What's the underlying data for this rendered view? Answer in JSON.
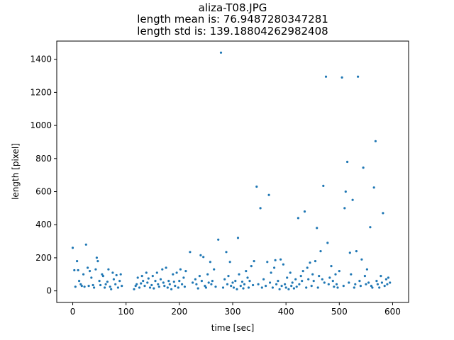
{
  "chart_data": {
    "type": "scatter",
    "title_lines": [
      "aliza-T08.JPG",
      "length mean is: 76.9487280347281",
      "length std is: 139.18804262982408"
    ],
    "xlabel": "time [sec]",
    "ylabel": "length [pixel]",
    "xlim": [
      -30,
      630
    ],
    "ylim": [
      -70,
      1510
    ],
    "xticks": [
      0,
      100,
      200,
      300,
      400,
      500,
      600
    ],
    "yticks": [
      0,
      200,
      400,
      600,
      800,
      1000,
      1200,
      1400
    ],
    "grid": false,
    "marker_color": "#1f77b4",
    "points": [
      [
        0,
        260
      ],
      [
        3,
        125
      ],
      [
        5,
        25
      ],
      [
        8,
        180
      ],
      [
        10,
        125
      ],
      [
        12,
        60
      ],
      [
        15,
        40
      ],
      [
        17,
        30
      ],
      [
        20,
        100
      ],
      [
        22,
        25
      ],
      [
        25,
        280
      ],
      [
        28,
        140
      ],
      [
        30,
        30
      ],
      [
        32,
        120
      ],
      [
        35,
        80
      ],
      [
        38,
        35
      ],
      [
        40,
        20
      ],
      [
        43,
        130
      ],
      [
        45,
        200
      ],
      [
        47,
        180
      ],
      [
        50,
        60
      ],
      [
        52,
        35
      ],
      [
        55,
        100
      ],
      [
        57,
        90
      ],
      [
        60,
        20
      ],
      [
        62,
        40
      ],
      [
        65,
        55
      ],
      [
        67,
        130
      ],
      [
        70,
        25
      ],
      [
        72,
        10
      ],
      [
        75,
        110
      ],
      [
        77,
        70
      ],
      [
        80,
        40
      ],
      [
        82,
        95
      ],
      [
        85,
        20
      ],
      [
        88,
        60
      ],
      [
        90,
        100
      ],
      [
        92,
        30
      ],
      [
        115,
        10
      ],
      [
        118,
        30
      ],
      [
        120,
        40
      ],
      [
        122,
        80
      ],
      [
        125,
        20
      ],
      [
        128,
        45
      ],
      [
        130,
        90
      ],
      [
        132,
        60
      ],
      [
        135,
        30
      ],
      [
        138,
        110
      ],
      [
        140,
        50
      ],
      [
        142,
        75
      ],
      [
        145,
        20
      ],
      [
        148,
        35
      ],
      [
        150,
        90
      ],
      [
        152,
        15
      ],
      [
        155,
        60
      ],
      [
        158,
        110
      ],
      [
        160,
        40
      ],
      [
        162,
        25
      ],
      [
        165,
        70
      ],
      [
        168,
        130
      ],
      [
        170,
        50
      ],
      [
        172,
        30
      ],
      [
        175,
        140
      ],
      [
        178,
        20
      ],
      [
        180,
        60
      ],
      [
        182,
        40
      ],
      [
        185,
        10
      ],
      [
        188,
        100
      ],
      [
        190,
        55
      ],
      [
        192,
        30
      ],
      [
        195,
        110
      ],
      [
        198,
        20
      ],
      [
        200,
        60
      ],
      [
        202,
        130
      ],
      [
        205,
        40
      ],
      [
        208,
        80
      ],
      [
        210,
        25
      ],
      [
        212,
        120
      ],
      [
        220,
        235
      ],
      [
        225,
        50
      ],
      [
        230,
        70
      ],
      [
        232,
        40
      ],
      [
        235,
        15
      ],
      [
        238,
        90
      ],
      [
        240,
        215
      ],
      [
        242,
        60
      ],
      [
        245,
        205
      ],
      [
        248,
        30
      ],
      [
        250,
        20
      ],
      [
        253,
        100
      ],
      [
        255,
        50
      ],
      [
        258,
        175
      ],
      [
        260,
        40
      ],
      [
        262,
        60
      ],
      [
        265,
        130
      ],
      [
        268,
        25
      ],
      [
        273,
        310
      ],
      [
        278,
        1440
      ],
      [
        282,
        20
      ],
      [
        285,
        70
      ],
      [
        288,
        235
      ],
      [
        290,
        40
      ],
      [
        292,
        90
      ],
      [
        295,
        175
      ],
      [
        297,
        30
      ],
      [
        300,
        50
      ],
      [
        302,
        20
      ],
      [
        305,
        60
      ],
      [
        308,
        10
      ],
      [
        310,
        320
      ],
      [
        312,
        100
      ],
      [
        315,
        30
      ],
      [
        318,
        55
      ],
      [
        320,
        15
      ],
      [
        322,
        40
      ],
      [
        325,
        120
      ],
      [
        328,
        80
      ],
      [
        330,
        20
      ],
      [
        332,
        60
      ],
      [
        335,
        150
      ],
      [
        338,
        35
      ],
      [
        340,
        180
      ],
      [
        345,
        630
      ],
      [
        348,
        40
      ],
      [
        352,
        500
      ],
      [
        355,
        20
      ],
      [
        358,
        70
      ],
      [
        362,
        30
      ],
      [
        365,
        175
      ],
      [
        368,
        580
      ],
      [
        370,
        50
      ],
      [
        372,
        110
      ],
      [
        375,
        20
      ],
      [
        378,
        140
      ],
      [
        380,
        185
      ],
      [
        382,
        40
      ],
      [
        385,
        60
      ],
      [
        388,
        10
      ],
      [
        390,
        190
      ],
      [
        392,
        30
      ],
      [
        395,
        160
      ],
      [
        398,
        40
      ],
      [
        400,
        20
      ],
      [
        402,
        80
      ],
      [
        405,
        10
      ],
      [
        408,
        110
      ],
      [
        410,
        30
      ],
      [
        412,
        50
      ],
      [
        415,
        15
      ],
      [
        418,
        70
      ],
      [
        420,
        25
      ],
      [
        423,
        440
      ],
      [
        425,
        40
      ],
      [
        428,
        90
      ],
      [
        430,
        60
      ],
      [
        432,
        120
      ],
      [
        435,
        480
      ],
      [
        438,
        20
      ],
      [
        440,
        140
      ],
      [
        442,
        70
      ],
      [
        445,
        170
      ],
      [
        448,
        30
      ],
      [
        450,
        100
      ],
      [
        452,
        60
      ],
      [
        455,
        180
      ],
      [
        458,
        380
      ],
      [
        460,
        20
      ],
      [
        462,
        90
      ],
      [
        465,
        240
      ],
      [
        468,
        70
      ],
      [
        470,
        635
      ],
      [
        472,
        50
      ],
      [
        475,
        1295
      ],
      [
        478,
        290
      ],
      [
        480,
        40
      ],
      [
        482,
        80
      ],
      [
        485,
        150
      ],
      [
        488,
        60
      ],
      [
        490,
        25
      ],
      [
        493,
        100
      ],
      [
        495,
        40
      ],
      [
        497,
        20
      ],
      [
        500,
        120
      ],
      [
        505,
        1290
      ],
      [
        508,
        30
      ],
      [
        510,
        500
      ],
      [
        512,
        600
      ],
      [
        515,
        780
      ],
      [
        518,
        50
      ],
      [
        520,
        230
      ],
      [
        522,
        100
      ],
      [
        525,
        550
      ],
      [
        528,
        20
      ],
      [
        530,
        40
      ],
      [
        532,
        240
      ],
      [
        535,
        1295
      ],
      [
        538,
        60
      ],
      [
        540,
        30
      ],
      [
        542,
        190
      ],
      [
        545,
        745
      ],
      [
        548,
        90
      ],
      [
        550,
        40
      ],
      [
        552,
        130
      ],
      [
        555,
        50
      ],
      [
        558,
        385
      ],
      [
        560,
        30
      ],
      [
        562,
        20
      ],
      [
        565,
        625
      ],
      [
        568,
        905
      ],
      [
        570,
        60
      ],
      [
        572,
        40
      ],
      [
        575,
        20
      ],
      [
        578,
        90
      ],
      [
        580,
        50
      ],
      [
        582,
        470
      ],
      [
        585,
        30
      ],
      [
        588,
        70
      ],
      [
        590,
        40
      ],
      [
        592,
        80
      ],
      [
        595,
        50
      ]
    ]
  }
}
